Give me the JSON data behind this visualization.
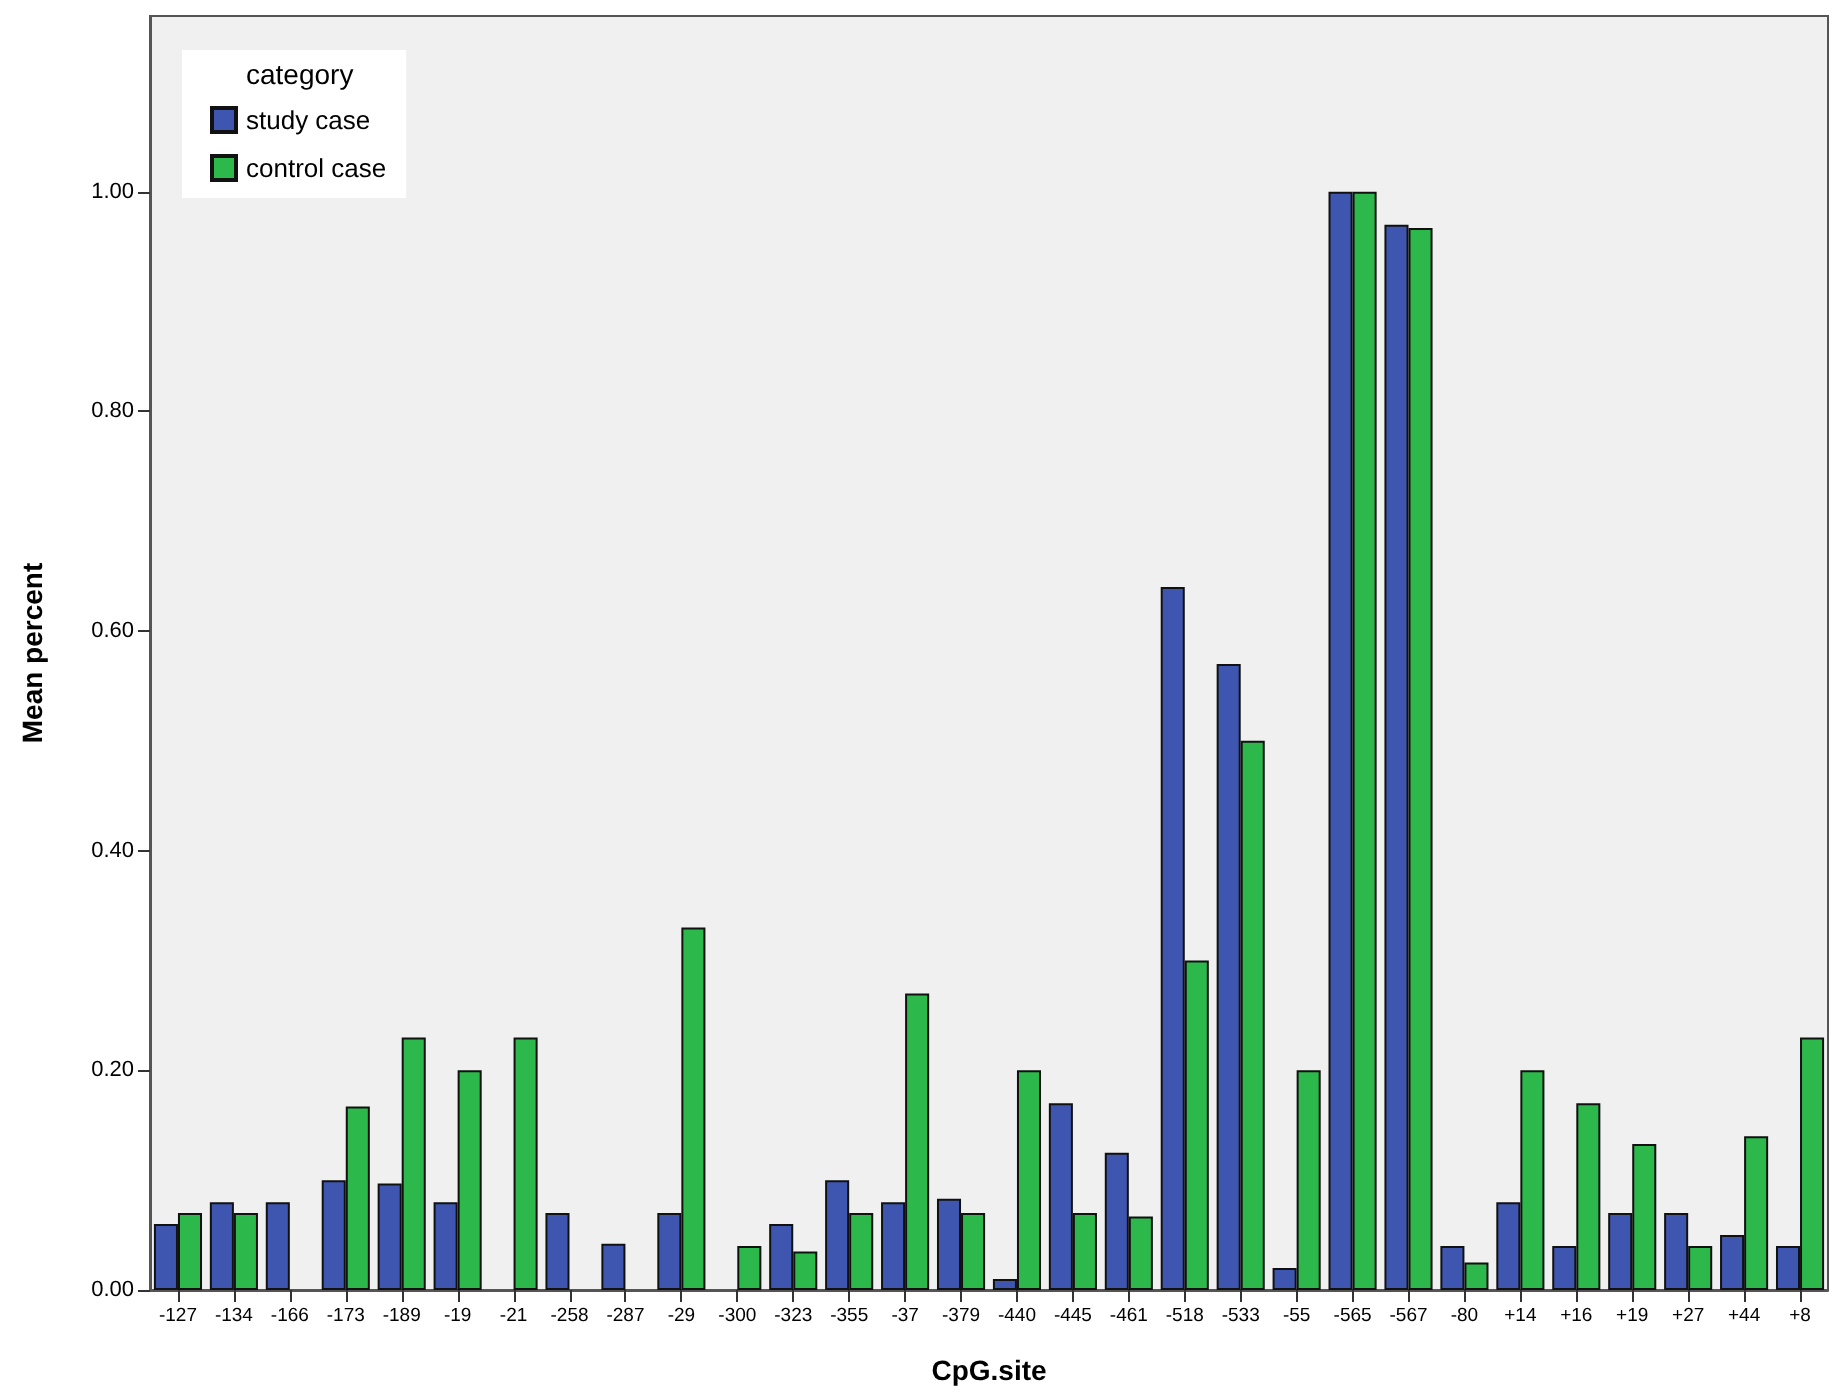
{
  "chart_data": {
    "type": "bar",
    "xlabel": "CpG.site",
    "ylabel": "Mean percent",
    "legend_title": "category",
    "legend": "top left",
    "grid": false,
    "categories": [
      "-127",
      "-134",
      "-166",
      "-173",
      "-189",
      "-19",
      "-21",
      "-258",
      "-287",
      "-29",
      "-300",
      "-323",
      "-355",
      "-37",
      "-379",
      "-440",
      "-445",
      "-461",
      "-518",
      "-533",
      "-55",
      "-565",
      "-567",
      "-80",
      "+14",
      "+16",
      "+19",
      "+27",
      "+44",
      "+8"
    ],
    "series": [
      {
        "name": "study case",
        "color": "#3f56b0",
        "values": [
          0.06,
          0.08,
          0.08,
          0.1,
          0.097,
          0.08,
          null,
          0.07,
          0.042,
          0.07,
          null,
          0.06,
          0.1,
          0.08,
          0.083,
          0.01,
          0.17,
          0.125,
          0.64,
          0.57,
          0.02,
          1.0,
          0.97,
          0.04,
          0.08,
          0.04,
          0.07,
          0.07,
          0.05,
          0.04
        ]
      },
      {
        "name": "control case",
        "color": "#2db84b",
        "values": [
          0.07,
          0.07,
          null,
          0.167,
          0.23,
          0.2,
          0.23,
          null,
          null,
          0.33,
          0.04,
          0.035,
          0.07,
          0.27,
          0.07,
          0.2,
          0.07,
          0.067,
          0.3,
          0.5,
          0.2,
          1.0,
          0.967,
          0.025,
          0.2,
          0.17,
          0.133,
          0.04,
          0.14,
          0.23
        ]
      }
    ],
    "ylim": [
      0,
      1.16
    ],
    "yticks": [
      {
        "value": 0,
        "label": "0.00"
      },
      {
        "value": 0.2,
        "label": "0.20"
      },
      {
        "value": 0.4,
        "label": "0.40"
      },
      {
        "value": 0.6,
        "label": "0.60"
      },
      {
        "value": 0.8,
        "label": "0.80"
      },
      {
        "value": 1,
        "label": "1.00"
      }
    ]
  }
}
